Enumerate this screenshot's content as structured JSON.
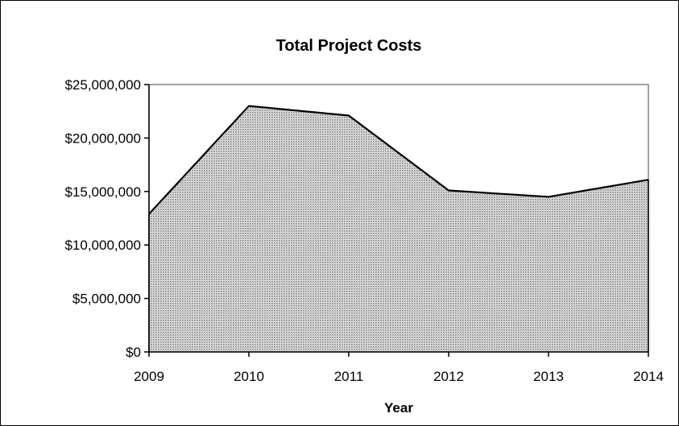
{
  "chart_data": {
    "type": "area",
    "title": "Total Project Costs",
    "xlabel": "Year",
    "ylabel": "",
    "x": [
      "2009",
      "2010",
      "2011",
      "2012",
      "2013",
      "2014"
    ],
    "series": [
      {
        "values": [
          12900000,
          23000000,
          22100000,
          15100000,
          14500000,
          16100000
        ]
      }
    ],
    "ylim": [
      0,
      25000000
    ],
    "yticks": [
      0,
      5000000,
      10000000,
      15000000,
      20000000,
      25000000
    ],
    "ytick_labels": [
      "$0",
      "$5,000,000",
      "$10,000,000",
      "$15,000,000",
      "$20,000,000",
      "$25,000,000"
    ],
    "grid": false,
    "legend": "none",
    "fill": "dotted pattern, gray",
    "colors": {
      "line": "#000000",
      "plot_border": "#808080",
      "fill_dot": "#6f6f6f"
    }
  }
}
